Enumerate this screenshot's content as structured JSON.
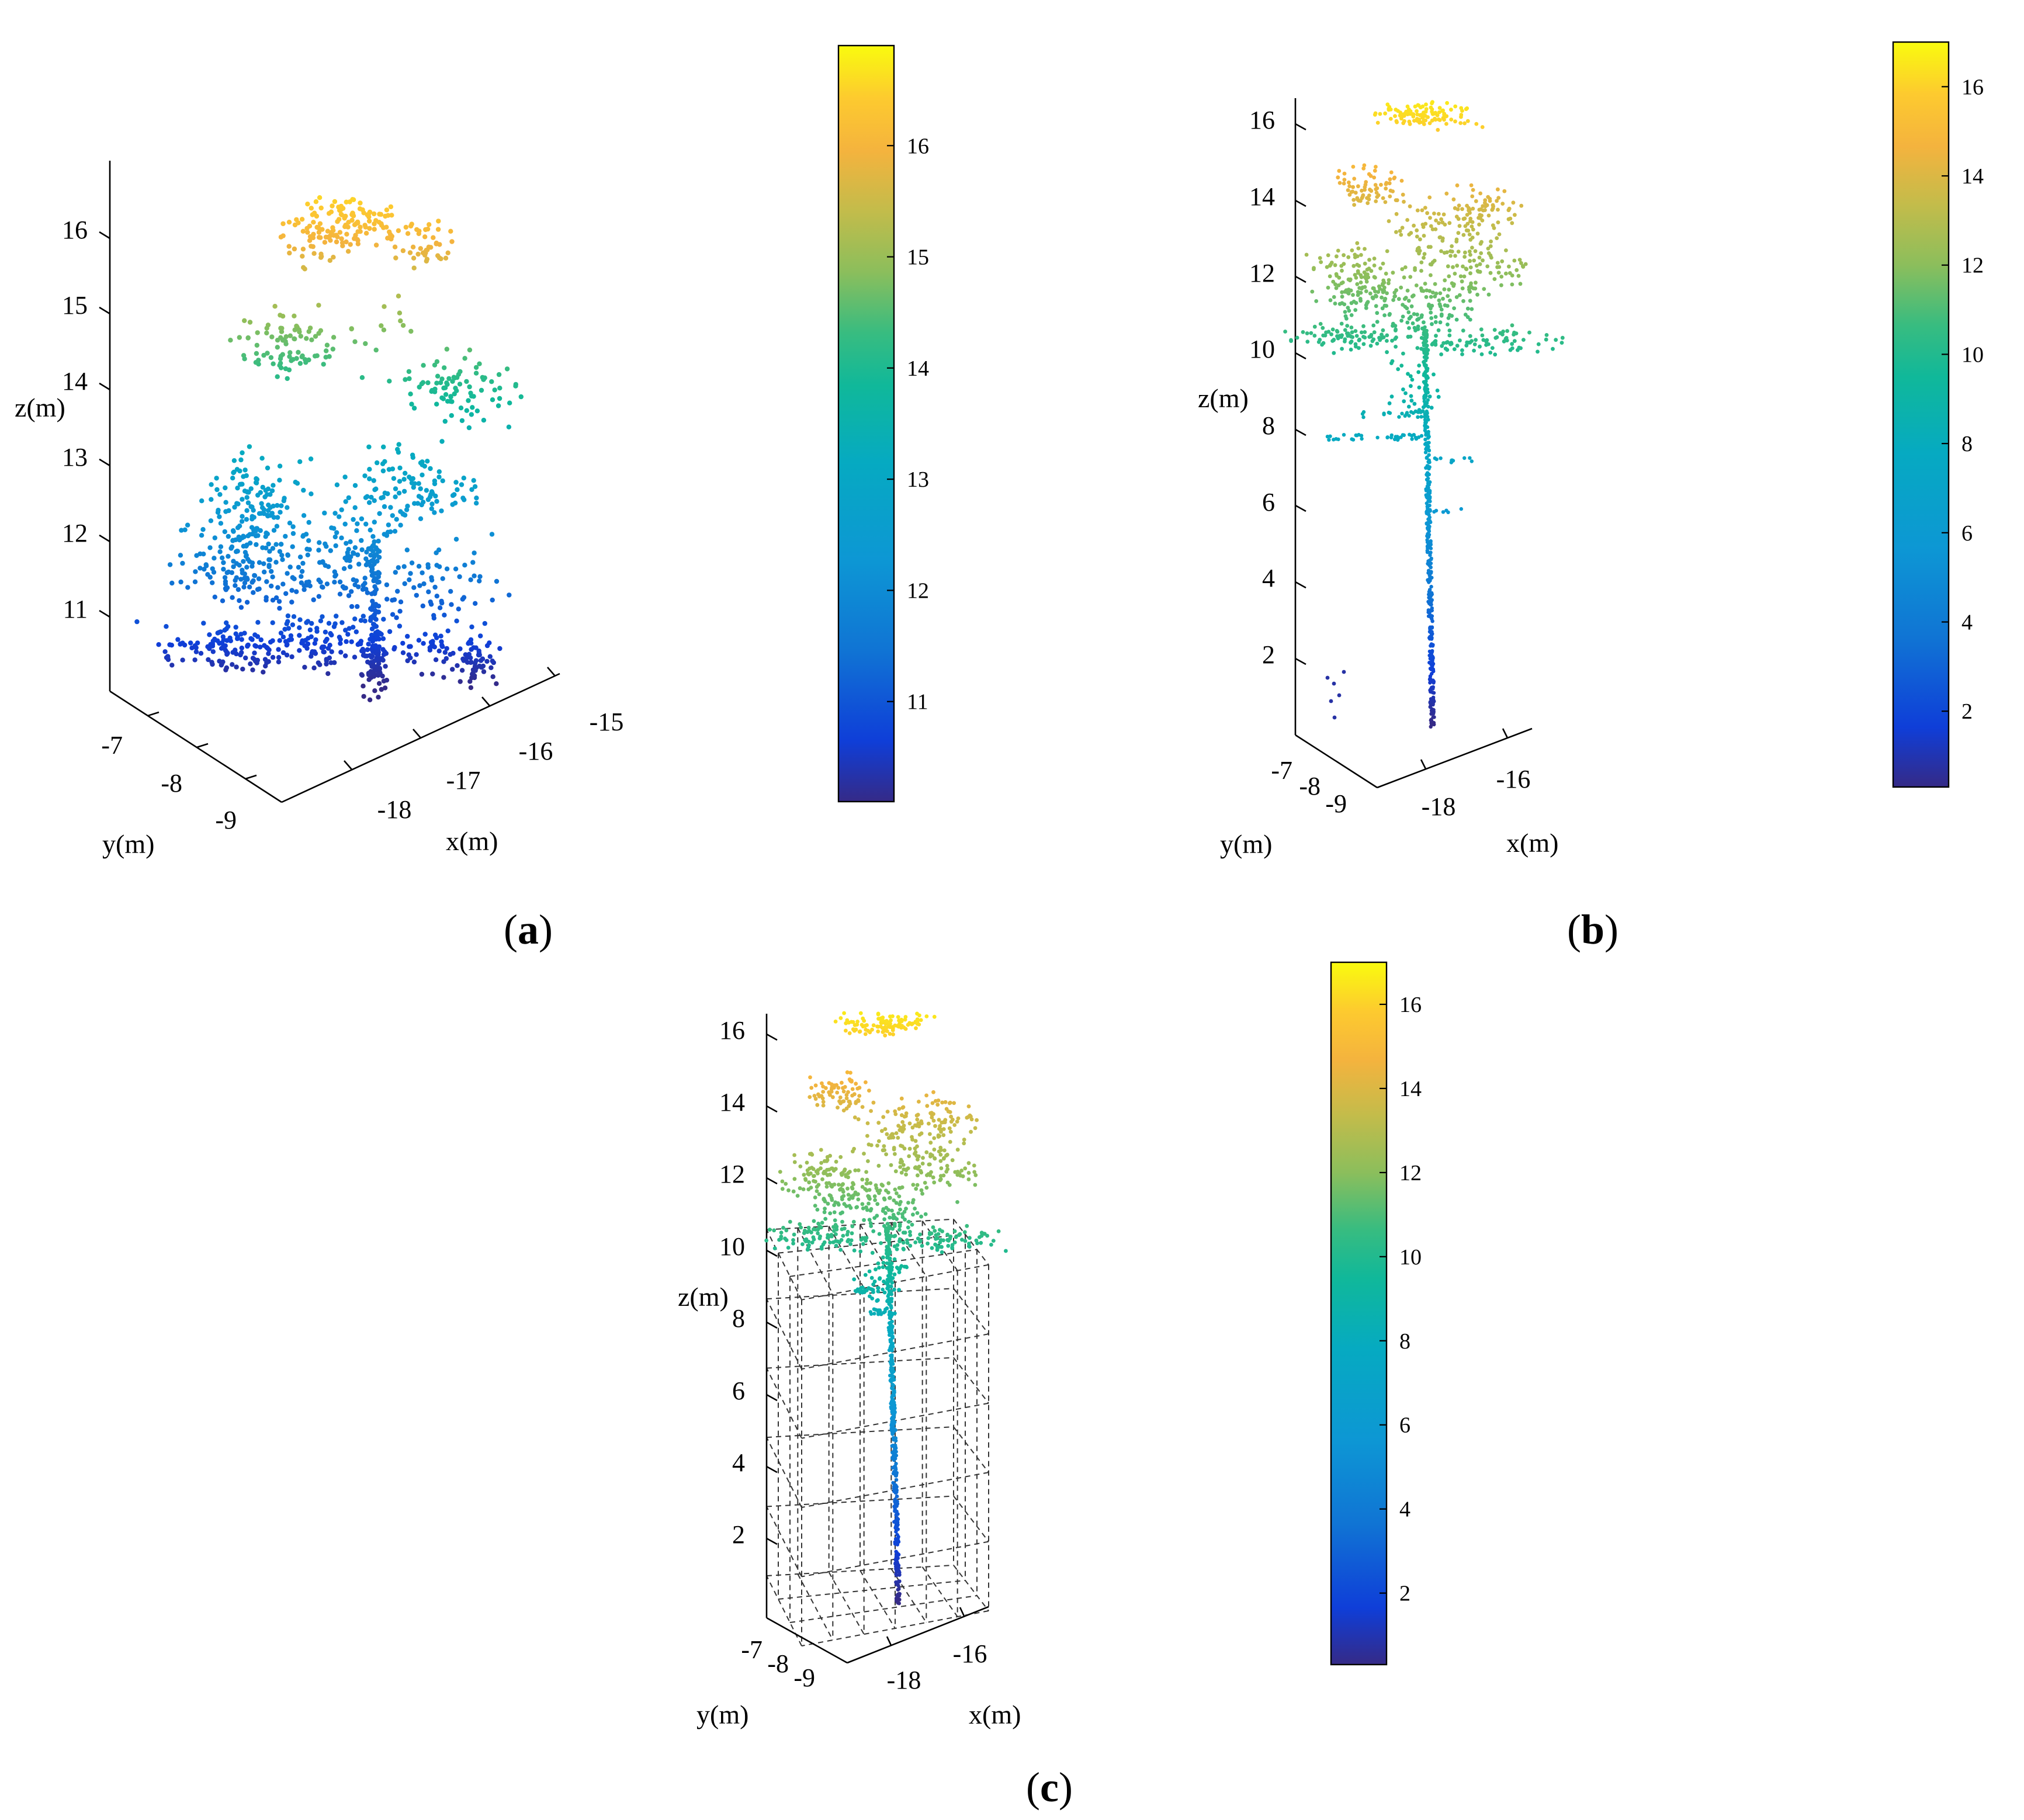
{
  "chart_data": [
    {
      "id": "a",
      "type": "scatter",
      "subtype": "3d-point-cloud",
      "panel_label": "a",
      "xlabel": "x(m)",
      "ylabel": "y(m)",
      "zlabel": "z(m)",
      "x_ticks": [
        "-18",
        "-17",
        "-16",
        "-15"
      ],
      "y_ticks": [
        "-7",
        "-8",
        "-9"
      ],
      "z_ticks": [
        "11",
        "12",
        "13",
        "14",
        "15",
        "16"
      ],
      "zlim": [
        10.2,
        16.7
      ],
      "colorbar": {
        "ticks": [
          "11",
          "12",
          "13",
          "14",
          "15",
          "16"
        ],
        "range": [
          10.1,
          16.9
        ],
        "colormap": "parula"
      },
      "description_points": "tree crown point cloud, z from about 10.2 to 16.6 m"
    },
    {
      "id": "b",
      "type": "scatter",
      "subtype": "3d-point-cloud",
      "panel_label": "b",
      "xlabel": "x(m)",
      "ylabel": "y(m)",
      "zlabel": "z(m)",
      "x_ticks": [
        "-18",
        "-16"
      ],
      "y_ticks": [
        "-7",
        "-8",
        "-9"
      ],
      "z_ticks": [
        "2",
        "4",
        "6",
        "8",
        "10",
        "12",
        "14",
        "16"
      ],
      "zlim": [
        0,
        16.8
      ],
      "colorbar": {
        "ticks": [
          "2",
          "4",
          "6",
          "8",
          "10",
          "12",
          "14",
          "16"
        ],
        "range": [
          0.3,
          17
        ],
        "colormap": "parula"
      },
      "description_points": "whole tree point cloud, z from about 0.2 to 16.6 m"
    },
    {
      "id": "c",
      "type": "scatter",
      "subtype": "3d-point-cloud-with-voxel-grid",
      "panel_label": "c",
      "xlabel": "x(m)",
      "ylabel": "y(m)",
      "zlabel": "z(m)",
      "x_ticks": [
        "-18",
        "-16"
      ],
      "y_ticks": [
        "-7",
        "-8",
        "-9"
      ],
      "z_ticks": [
        "2",
        "4",
        "6",
        "8",
        "10",
        "12",
        "14",
        "16"
      ],
      "zlim": [
        0,
        16.8
      ],
      "voxel_box_top_z": 9.6,
      "colorbar": {
        "ticks": [
          "2",
          "4",
          "6",
          "8",
          "10",
          "12",
          "14",
          "16"
        ],
        "range": [
          0.3,
          17
        ],
        "colormap": "parula"
      },
      "description_points": "whole tree point cloud inside dashed voxel grid up to about 9.6 m"
    }
  ]
}
